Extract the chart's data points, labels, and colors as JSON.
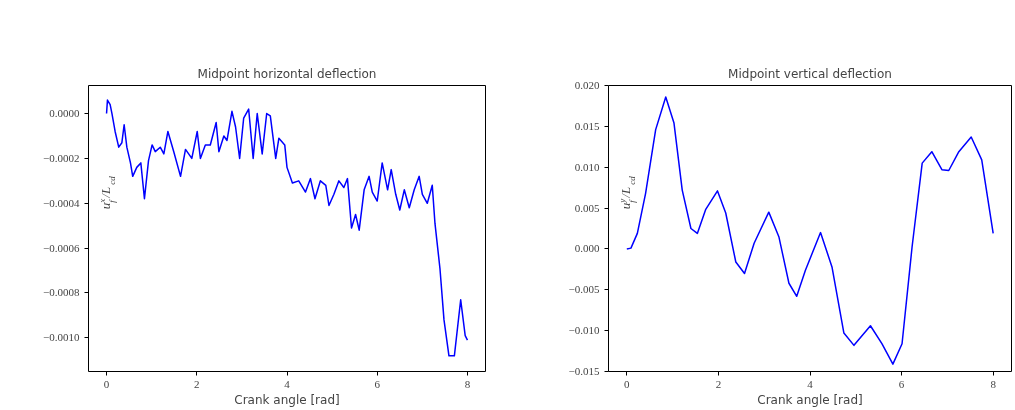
{
  "chart_data": [
    {
      "type": "line",
      "title": "Midpoint horizontal deflection",
      "xlabel": "Crank angle [rad]",
      "ylabel": "u$_{f}$$^{x}$/L$_{cd}$",
      "grid": false,
      "xlim": [
        -0.4,
        8.4
      ],
      "ylim": [
        -0.00115,
        0.000125
      ],
      "xticks": [
        0,
        2,
        4,
        6,
        8
      ],
      "yticks": [
        {
          "value": 0,
          "label": "0.0000"
        },
        {
          "value": -0.0002,
          "label": "−0.0002"
        },
        {
          "value": -0.0004,
          "label": "−0.0004"
        },
        {
          "value": -0.0006,
          "label": "−0.0006"
        },
        {
          "value": -0.0008,
          "label": "−0.0008"
        },
        {
          "value": -0.001,
          "label": "−0.0010"
        }
      ],
      "series": [
        {
          "color": "#0000ff",
          "x": [
            0,
            0.02,
            0.08,
            0.12,
            0.19,
            0.27,
            0.34,
            0.39,
            0.45,
            0.53,
            0.58,
            0.67,
            0.76,
            0.84,
            0.93,
            1.01,
            1.08,
            1.19,
            1.27,
            1.36,
            1.49,
            1.64,
            1.75,
            1.89,
            2.01,
            2.08,
            2.19,
            2.3,
            2.43,
            2.49,
            2.6,
            2.67,
            2.78,
            2.86,
            2.95,
            3.04,
            3.15,
            3.25,
            3.34,
            3.45,
            3.55,
            3.63,
            3.75,
            3.82,
            3.95,
            4.0,
            4.12,
            4.26,
            4.41,
            4.52,
            4.62,
            4.74,
            4.86,
            4.93,
            5.04,
            5.15,
            5.26,
            5.34,
            5.43,
            5.52,
            5.6,
            5.71,
            5.82,
            5.89,
            6.0,
            6.11,
            6.23,
            6.31,
            6.41,
            6.5,
            6.6,
            6.71,
            6.82,
            6.93,
            7.0,
            7.11,
            7.22,
            7.28,
            7.39,
            7.48,
            7.59,
            7.71,
            7.85,
            7.95,
            8.0
          ],
          "values": [
            0,
            6e-05,
            4e-05,
            0.0,
            -8e-05,
            -0.00015,
            -0.00013,
            -5e-05,
            -0.00015,
            -0.00022,
            -0.00028,
            -0.00024,
            -0.00022,
            -0.00038,
            -0.00021,
            -0.00014,
            -0.00017,
            -0.00015,
            -0.00018,
            -8e-05,
            -0.00017,
            -0.00028,
            -0.00016,
            -0.0002,
            -8e-05,
            -0.0002,
            -0.00014,
            -0.00014,
            -4e-05,
            -0.00017,
            -0.0001,
            -0.00012,
            1e-05,
            -6e-05,
            -0.0002,
            -2e-05,
            2e-05,
            -0.0002,
            0.0,
            -0.00018,
            0.0,
            -1e-05,
            -0.0002,
            -0.00011,
            -0.00014,
            -0.00024,
            -0.00031,
            -0.0003,
            -0.00035,
            -0.00029,
            -0.00038,
            -0.0003,
            -0.00032,
            -0.00041,
            -0.00036,
            -0.0003,
            -0.00033,
            -0.00029,
            -0.00051,
            -0.00045,
            -0.00052,
            -0.00034,
            -0.00028,
            -0.00035,
            -0.00039,
            -0.00022,
            -0.00034,
            -0.00025,
            -0.00036,
            -0.00043,
            -0.00034,
            -0.00042,
            -0.00034,
            -0.00028,
            -0.00036,
            -0.0004,
            -0.00032,
            -0.00049,
            -0.00069,
            -0.00092,
            -0.00108,
            -0.00108,
            -0.00083,
            -0.00099,
            -0.00101
          ]
        }
      ]
    },
    {
      "type": "line",
      "title": "Midpoint vertical deflection",
      "xlabel": "Crank angle [rad]",
      "ylabel": "u$_{f}$$^{y}$/L$_{cd}$",
      "grid": false,
      "xlim": [
        -0.4,
        8.4
      ],
      "ylim": [
        -0.015,
        0.02
      ],
      "xticks": [
        0,
        2,
        4,
        6,
        8
      ],
      "yticks": [
        {
          "value": 0.02,
          "label": "0.020"
        },
        {
          "value": 0.015,
          "label": "0.015"
        },
        {
          "value": 0.01,
          "label": "0.010"
        },
        {
          "value": 0.005,
          "label": "0.005"
        },
        {
          "value": 0,
          "label": "0.000"
        },
        {
          "value": -0.005,
          "label": "−0.005"
        },
        {
          "value": -0.01,
          "label": "−0.010"
        },
        {
          "value": -0.015,
          "label": "−0.015"
        }
      ],
      "series": [
        {
          "color": "#0000ff",
          "x": [
            0,
            0.09,
            0.23,
            0.41,
            0.63,
            0.85,
            1.03,
            1.21,
            1.4,
            1.54,
            1.72,
            1.98,
            2.16,
            2.38,
            2.57,
            2.78,
            3.1,
            3.32,
            3.54,
            3.71,
            3.9,
            4.23,
            4.48,
            4.74,
            4.96,
            5.32,
            5.57,
            5.81,
            6.01,
            6.23,
            6.45,
            6.66,
            6.88,
            7.03,
            7.25,
            7.52,
            7.75,
            8.0
          ],
          "values": [
            0,
            0.0001,
            0.0019,
            0.0068,
            0.0146,
            0.0186,
            0.0154,
            0.0072,
            0.0025,
            0.0019,
            0.0048,
            0.0071,
            0.0044,
            -0.0016,
            -0.003,
            0.0007,
            0.0045,
            0.0015,
            -0.0042,
            -0.0058,
            -0.0026,
            0.002,
            -0.0022,
            -0.0103,
            -0.0118,
            -0.0094,
            -0.0116,
            -0.0141,
            -0.0116,
            0.0003,
            0.0105,
            0.0119,
            0.0097,
            0.0096,
            0.0119,
            0.0137,
            0.0109,
            0.0019
          ]
        }
      ]
    }
  ]
}
